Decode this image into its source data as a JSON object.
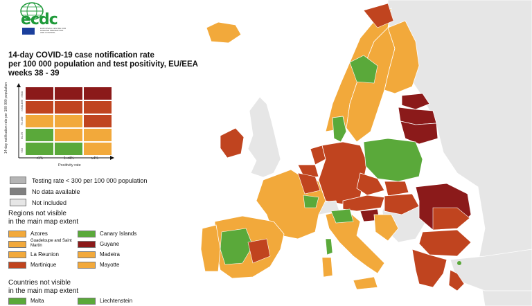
{
  "logo": {
    "brand": "ecdc",
    "subtitle": "EUROPEAN CENTRE FOR DISEASE PREVENTION AND CONTROL"
  },
  "title": {
    "line1": "14-day COVID-19 case notification rate",
    "line2": "per 100 000 population and test positivity, EU/EEA",
    "line3": "weeks 38 - 39"
  },
  "matrix": {
    "y_axis_label": "14-day notification rate per 100 000 population",
    "x_axis_label": "Positivity rate",
    "x_ticks": [
      "<1%",
      "1-<4%",
      "≥4%"
    ],
    "y_ticks": [
      ">500",
      ">200-499",
      "75-199",
      "50-75",
      "<50"
    ],
    "colors": [
      [
        "#8b1a1a",
        "#8b1a1a",
        "#8b1a1a"
      ],
      [
        "#c0441f",
        "#c0441f",
        "#c0441f"
      ],
      [
        "#f2a93b",
        "#f2a93b",
        "#c0441f"
      ],
      [
        "#5aa93a",
        "#f2a93b",
        "#f2a93b"
      ],
      [
        "#5aa93a",
        "#5aa93a",
        "#f2a93b"
      ]
    ]
  },
  "legend": {
    "testing_rate": "Testing rate < 300 per 100 000 population",
    "no_data": "No data available",
    "not_included": "Not included"
  },
  "regions_heading": {
    "line1": "Regions not visible",
    "line2": "in the main map extent"
  },
  "regions": [
    {
      "label": "Azores",
      "color": "#f2a93b"
    },
    {
      "label": "Guadeloupe and Saint Martin",
      "color": "#f2a93b"
    },
    {
      "label": "La Reunion",
      "color": "#f2a93b"
    },
    {
      "label": "Martinique",
      "color": "#c0441f"
    },
    {
      "label": "Canary Islands",
      "color": "#5aa93a"
    },
    {
      "label": "Guyane",
      "color": "#8b1a1a"
    },
    {
      "label": "Madeira",
      "color": "#f2a93b"
    },
    {
      "label": "Mayotte",
      "color": "#f2a93b"
    }
  ],
  "countries_heading": {
    "line1": "Countries not visible",
    "line2": "in the main map extent"
  },
  "countries": [
    {
      "label": "Malta",
      "color": "#5aa93a"
    },
    {
      "label": "Liechtenstein",
      "color": "#5aa93a"
    }
  ],
  "colors": {
    "dark_red": "#8b1a1a",
    "red": "#c0441f",
    "orange": "#f2a93b",
    "green": "#5aa93a",
    "grey_not_included": "#e6e6e6",
    "testing_rate_grey": "#b5b5b5",
    "no_data_grey": "#808080",
    "sea": "#ffffff"
  }
}
